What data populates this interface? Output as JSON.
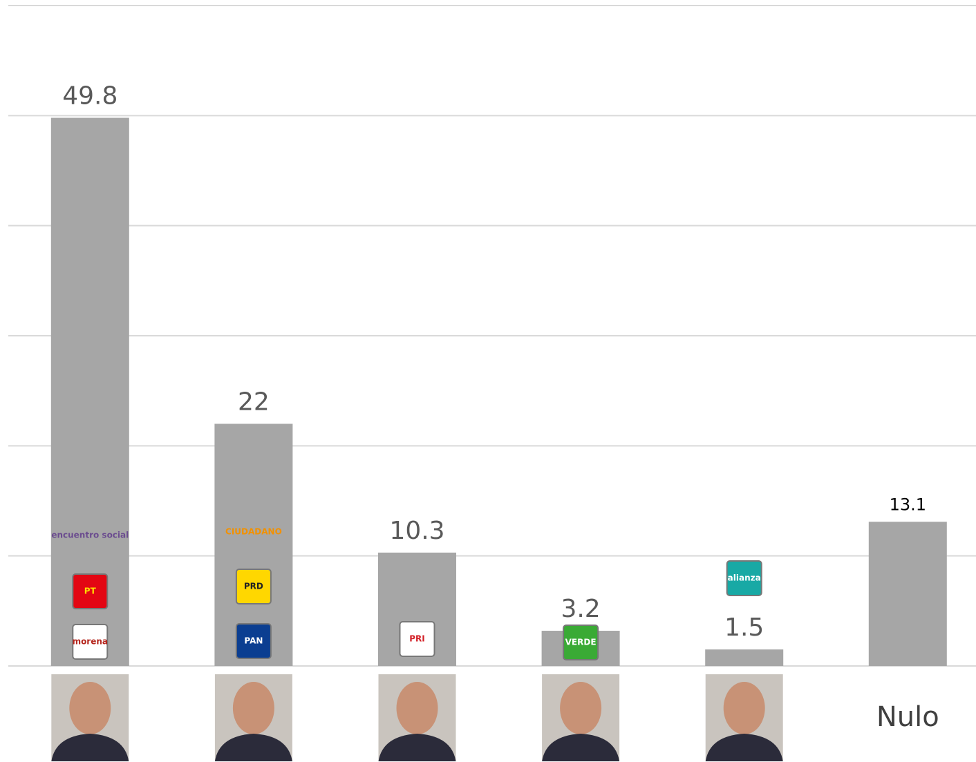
{
  "chart_data": {
    "type": "bar",
    "categories": [
      null,
      null,
      null,
      null,
      null,
      "Nulo"
    ],
    "values": [
      49.8,
      22,
      10.3,
      3.2,
      1.5,
      13.1
    ],
    "value_labels": [
      "49.8",
      "22",
      "10.3",
      "3.2",
      "1.5",
      "13.1"
    ],
    "color": "#a6a6a6",
    "ylim": [
      0,
      60
    ],
    "yticks": [
      0,
      10,
      20,
      30,
      40,
      50,
      60
    ],
    "grid": true
  },
  "logos": [
    [
      "encuentro social",
      "PT",
      "morena"
    ],
    [
      "CIUDADANO",
      "PRD",
      "PAN"
    ],
    [
      "PRI"
    ],
    [
      "VERDE"
    ],
    [
      "alianza"
    ],
    []
  ]
}
